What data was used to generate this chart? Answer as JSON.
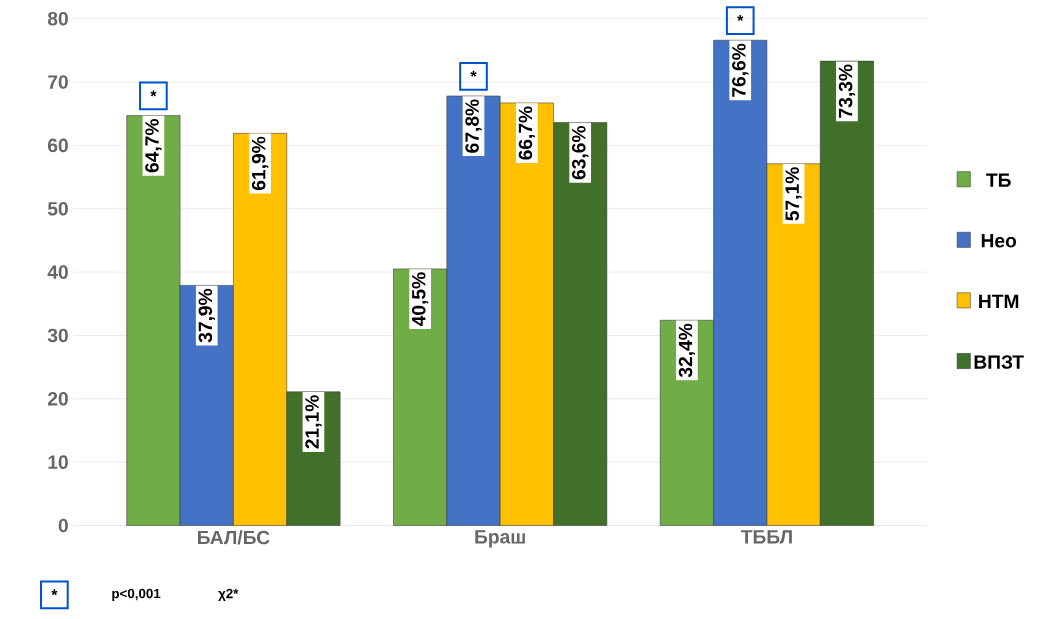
{
  "chart_data": {
    "type": "bar",
    "categories": [
      "БАЛ/БС",
      "Браш",
      "ТББЛ"
    ],
    "series": [
      {
        "name": "ТБ",
        "color": "#70ad47",
        "values": [
          64.7,
          40.5,
          32.4
        ],
        "value_labels": [
          "64,7%",
          "40,5%",
          "32,4%"
        ]
      },
      {
        "name": "Нео",
        "color": "#4472c4",
        "values": [
          37.9,
          67.8,
          76.6
        ],
        "value_labels": [
          "37,9%",
          "67,8%",
          "76,6%"
        ]
      },
      {
        "name": "НТМ",
        "color": "#ffc000",
        "values": [
          61.9,
          66.7,
          57.1
        ],
        "value_labels": [
          "61,9%",
          "66,7%",
          "57,1%"
        ]
      },
      {
        "name": "ВПЗТ",
        "color": "#41702a",
        "values": [
          21.1,
          63.6,
          73.3
        ],
        "value_labels": [
          "21,1%",
          "63,6%",
          "73,3%"
        ]
      }
    ],
    "ylim": [
      0,
      80
    ],
    "yticks": [
      0,
      10,
      20,
      30,
      40,
      50,
      60,
      70,
      80
    ],
    "grid": "y",
    "legend": "right",
    "annotations": [
      "*",
      "*",
      "*",
      "*",
      "p<0,001",
      "χ2*"
    ]
  }
}
